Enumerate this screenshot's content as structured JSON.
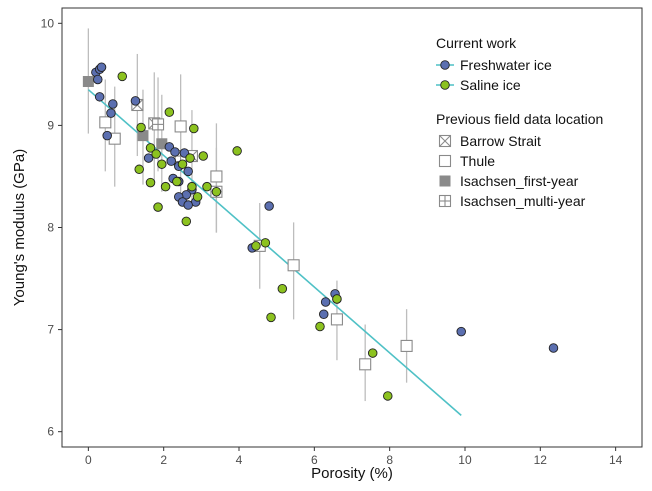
{
  "chart_data": {
    "type": "scatter",
    "xlabel": "Porosity (%)",
    "ylabel": "Young's modulus (GPa)",
    "xlim": [
      -0.7,
      14.7
    ],
    "ylim": [
      5.85,
      10.15
    ],
    "x_ticks": [
      0,
      2,
      4,
      6,
      8,
      10,
      12,
      14
    ],
    "y_ticks": [
      6,
      7,
      8,
      9,
      10
    ],
    "grid": false,
    "legend": {
      "placement": "top-right",
      "groups": [
        {
          "title": "Current work",
          "entries": [
            {
              "label": "Freshwater ice",
              "series": "freshwater"
            },
            {
              "label": "Saline ice",
              "series": "saline"
            }
          ]
        },
        {
          "title": "Previous field data location",
          "entries": [
            {
              "label": "Barrow Strait",
              "series": "barrow"
            },
            {
              "label": "Thule",
              "series": "thule"
            },
            {
              "label": "Isachsen_first-year",
              "series": "isachsen_fy"
            },
            {
              "label": "Isachsen_multi-year",
              "series": "isachsen_my"
            }
          ]
        }
      ]
    },
    "colors": {
      "freshwater": "#5b6fb0",
      "saline": "#8cc21f",
      "fit_line": "#4fc1c6",
      "previous_marker": "#8a8a8a",
      "error_bar": "#bdbdbd"
    },
    "fit_line": {
      "x": [
        0,
        9.9
      ],
      "y": [
        9.35,
        6.16
      ]
    },
    "series": [
      {
        "name": "Freshwater ice",
        "key": "freshwater",
        "marker": "circle",
        "points": [
          [
            0.2,
            9.52
          ],
          [
            0.3,
            9.55
          ],
          [
            0.35,
            9.57
          ],
          [
            0.25,
            9.45
          ],
          [
            0.3,
            9.28
          ],
          [
            0.65,
            9.21
          ],
          [
            0.6,
            9.12
          ],
          [
            1.25,
            9.24
          ],
          [
            0.5,
            8.9
          ],
          [
            1.6,
            8.68
          ],
          [
            2.15,
            8.79
          ],
          [
            2.3,
            8.74
          ],
          [
            2.55,
            8.73
          ],
          [
            2.2,
            8.65
          ],
          [
            2.4,
            8.6
          ],
          [
            2.65,
            8.55
          ],
          [
            2.25,
            8.48
          ],
          [
            2.4,
            8.45
          ],
          [
            2.75,
            8.37
          ],
          [
            2.6,
            8.32
          ],
          [
            2.4,
            8.3
          ],
          [
            2.85,
            8.25
          ],
          [
            2.5,
            8.25
          ],
          [
            2.65,
            8.22
          ],
          [
            4.8,
            8.21
          ],
          [
            4.35,
            7.8
          ],
          [
            6.3,
            7.27
          ],
          [
            6.25,
            7.15
          ],
          [
            6.55,
            7.35
          ],
          [
            6.6,
            7.3
          ],
          [
            9.9,
            6.98
          ],
          [
            12.35,
            6.82
          ]
        ]
      },
      {
        "name": "Saline ice",
        "key": "saline",
        "marker": "circle",
        "points": [
          [
            0.9,
            9.48
          ],
          [
            2.15,
            9.13
          ],
          [
            1.4,
            8.98
          ],
          [
            2.8,
            8.97
          ],
          [
            1.65,
            8.78
          ],
          [
            1.8,
            8.72
          ],
          [
            2.7,
            8.68
          ],
          [
            3.05,
            8.7
          ],
          [
            3.95,
            8.75
          ],
          [
            1.35,
            8.57
          ],
          [
            1.95,
            8.62
          ],
          [
            2.5,
            8.62
          ],
          [
            1.65,
            8.44
          ],
          [
            2.35,
            8.45
          ],
          [
            2.75,
            8.4
          ],
          [
            3.15,
            8.4
          ],
          [
            3.4,
            8.35
          ],
          [
            2.05,
            8.4
          ],
          [
            2.9,
            8.3
          ],
          [
            1.85,
            8.2
          ],
          [
            2.6,
            8.06
          ],
          [
            4.45,
            7.82
          ],
          [
            4.7,
            7.85
          ],
          [
            5.15,
            7.4
          ],
          [
            4.85,
            7.12
          ],
          [
            6.15,
            7.03
          ],
          [
            6.6,
            7.3
          ],
          [
            7.55,
            6.77
          ],
          [
            7.95,
            6.35
          ]
        ]
      },
      {
        "name": "Barrow Strait",
        "key": "barrow",
        "marker": "square-x",
        "points": [
          {
            "x": 1.3,
            "y": 9.2,
            "lo": 8.7,
            "hi": 9.7
          },
          {
            "x": 1.75,
            "y": 9.02,
            "lo": 8.45,
            "hi": 9.52
          },
          {
            "x": 2.75,
            "y": 8.7,
            "lo": 8.25,
            "hi": 9.15
          }
        ]
      },
      {
        "name": "Thule",
        "key": "thule",
        "marker": "square-open",
        "points": [
          {
            "x": 0.45,
            "y": 9.03,
            "lo": 8.55,
            "hi": 9.45
          },
          {
            "x": 0.7,
            "y": 8.87,
            "lo": 8.4,
            "hi": 9.38
          },
          {
            "x": 2.45,
            "y": 8.99,
            "lo": 8.53,
            "hi": 9.5
          },
          {
            "x": 3.4,
            "y": 8.5,
            "lo": 7.95,
            "hi": 9.02
          },
          {
            "x": 4.55,
            "y": 7.82,
            "lo": 7.4,
            "hi": 8.24
          },
          {
            "x": 5.45,
            "y": 7.63,
            "lo": 7.1,
            "hi": 8.05
          },
          {
            "x": 6.6,
            "y": 7.1,
            "lo": 6.7,
            "hi": 7.48
          },
          {
            "x": 7.35,
            "y": 6.66,
            "lo": 6.3,
            "hi": 7.05
          },
          {
            "x": 8.45,
            "y": 6.84,
            "lo": 6.48,
            "hi": 7.2
          }
        ]
      },
      {
        "name": "Isachsen_first-year",
        "key": "isachsen_fy",
        "marker": "square-filled",
        "points": [
          {
            "x": 0.0,
            "y": 9.43,
            "lo": 8.92,
            "hi": 9.95
          },
          {
            "x": 1.45,
            "y": 8.9,
            "lo": 8.42,
            "hi": 9.35
          },
          {
            "x": 1.95,
            "y": 8.82,
            "lo": 8.35,
            "hi": 9.3
          }
        ]
      },
      {
        "name": "Isachsen_multi-year",
        "key": "isachsen_my",
        "marker": "square-plus",
        "points": [
          {
            "x": 1.85,
            "y": 9.01,
            "lo": 8.55,
            "hi": 9.47
          },
          {
            "x": 2.45,
            "y": 8.7,
            "lo": 8.25,
            "hi": 9.15
          },
          {
            "x": 3.4,
            "y": 8.35,
            "lo": 7.95,
            "hi": 8.78
          }
        ]
      }
    ]
  }
}
